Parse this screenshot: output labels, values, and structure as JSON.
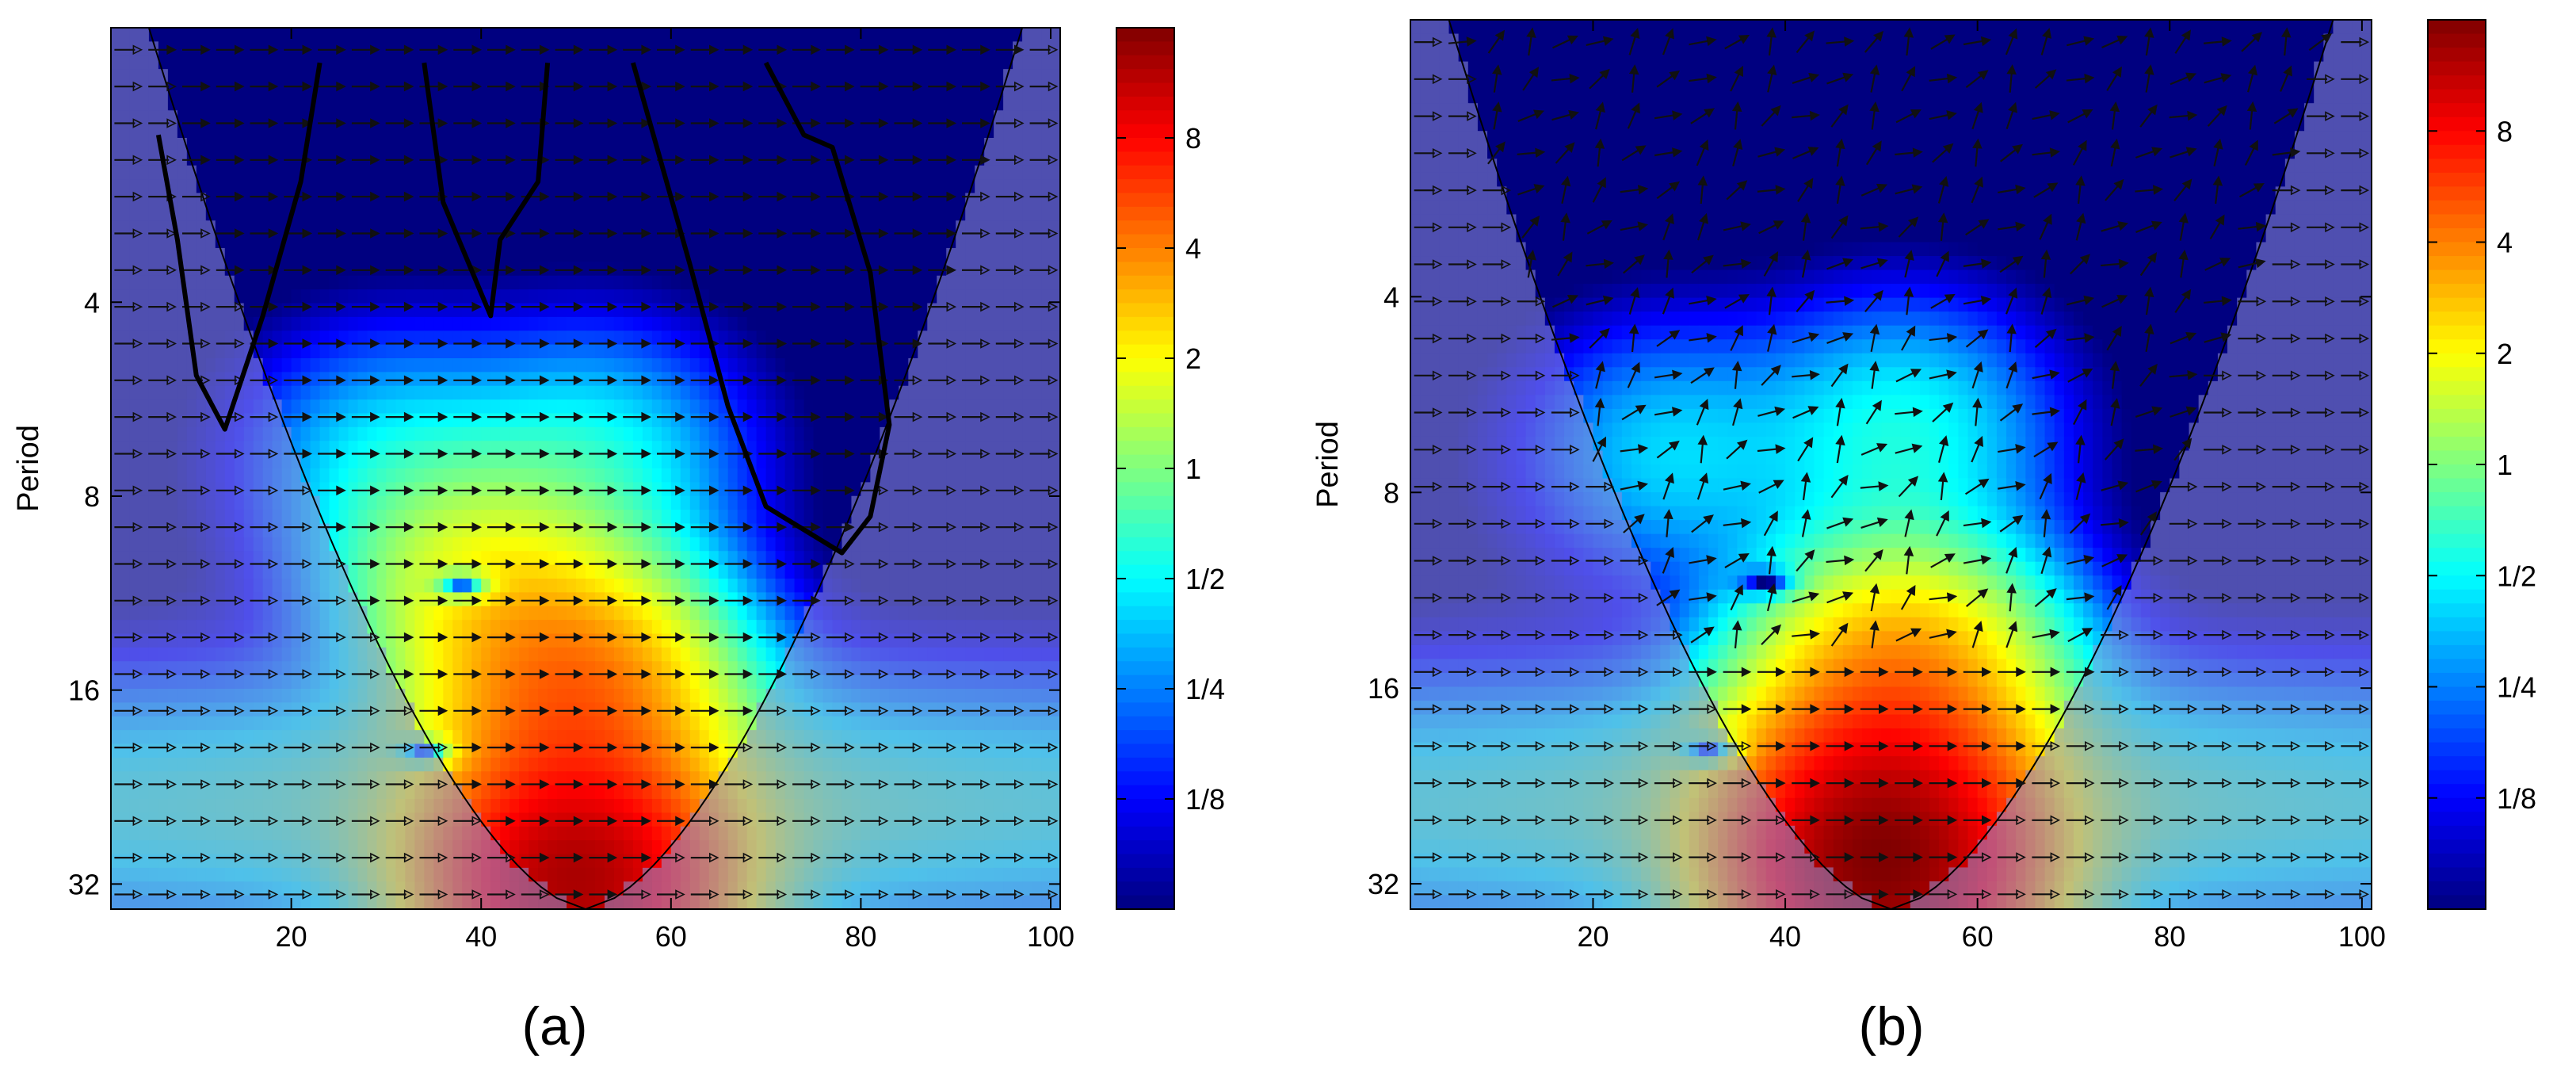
{
  "figure": {
    "panels": [
      {
        "id": "a",
        "label": "(a)"
      },
      {
        "id": "b",
        "label": "(b)"
      }
    ]
  },
  "chart_data": [
    {
      "type": "heatmap",
      "panel_label": "(a)",
      "title": "",
      "xlabel": "",
      "ylabel": "Period",
      "xlim": [
        1,
        101
      ],
      "ylim_period": [
        1.5,
        35
      ],
      "y_scale": "log2",
      "y_reversed": true,
      "x_ticks": [
        20,
        40,
        60,
        80,
        100
      ],
      "y_ticks": [
        4,
        8,
        16,
        32
      ],
      "colorbar": {
        "scale": "log2",
        "range": [
          0.0625,
          16
        ],
        "ticks": [
          {
            "value": 0.125,
            "label": "1/8"
          },
          {
            "value": 0.25,
            "label": "1/4"
          },
          {
            "value": 0.5,
            "label": "1/2"
          },
          {
            "value": 1,
            "label": "1"
          },
          {
            "value": 2,
            "label": "2"
          },
          {
            "value": 4,
            "label": "4"
          },
          {
            "value": 8,
            "label": "8"
          }
        ],
        "colormap": "jet"
      },
      "cone_of_influence": {
        "center_x": 51,
        "apex_period": 35,
        "top_half_width": 46,
        "shading": "#8f8fd8"
      },
      "hotspots": [
        {
          "x": 30,
          "period": 7,
          "power": 0.35
        },
        {
          "x": 52,
          "period": 7,
          "power": 0.45
        },
        {
          "x": 50,
          "period": 16,
          "power": 4
        },
        {
          "x": 50,
          "period": 32,
          "power": 12
        },
        {
          "x": 40,
          "period": 11,
          "power": 1.5
        }
      ],
      "low_spots": [
        {
          "x": 38,
          "period": 11
        },
        {
          "x": 34,
          "period": 20
        }
      ],
      "arrow_field": "horizontal",
      "significance_contours": [
        {
          "points": [
            [
              6,
              2.2
            ],
            [
              8,
              3.2
            ],
            [
              10,
              5.2
            ],
            [
              13,
              6.3
            ],
            [
              17,
              4.2
            ],
            [
              21,
              2.6
            ],
            [
              23,
              1.7
            ]
          ]
        },
        {
          "points": [
            [
              34,
              1.7
            ],
            [
              36,
              2.8
            ],
            [
              41,
              4.2
            ],
            [
              42,
              3.2
            ],
            [
              46,
              2.6
            ],
            [
              47,
              1.7
            ]
          ]
        },
        {
          "points": [
            [
              56,
              1.7
            ],
            [
              62,
              3.5
            ],
            [
              66,
              5.8
            ],
            [
              70,
              8.3
            ],
            [
              78,
              9.8
            ],
            [
              81,
              8.6
            ],
            [
              83,
              6.2
            ],
            [
              81,
              3.6
            ],
            [
              77,
              2.3
            ],
            [
              74,
              2.2
            ],
            [
              70,
              1.7
            ]
          ]
        }
      ]
    },
    {
      "type": "heatmap",
      "panel_label": "(b)",
      "title": "",
      "xlabel": "",
      "ylabel": "Period",
      "xlim": [
        1,
        101
      ],
      "ylim_period": [
        1.5,
        35
      ],
      "y_scale": "log2",
      "y_reversed": true,
      "x_ticks": [
        20,
        40,
        60,
        80,
        100
      ],
      "y_ticks": [
        4,
        8,
        16,
        32
      ],
      "colorbar": {
        "scale": "log2",
        "range": [
          0.0625,
          16
        ],
        "ticks": [
          {
            "value": 0.125,
            "label": "1/8"
          },
          {
            "value": 0.25,
            "label": "1/4"
          },
          {
            "value": 0.5,
            "label": "1/2"
          },
          {
            "value": 1,
            "label": "1"
          },
          {
            "value": 2,
            "label": "2"
          },
          {
            "value": 4,
            "label": "4"
          },
          {
            "value": 8,
            "label": "8"
          }
        ],
        "colormap": "jet"
      },
      "cone_of_influence": {
        "center_x": 51,
        "apex_period": 35,
        "top_half_width": 46,
        "shading": "#8f8fd8"
      },
      "hotspots": [
        {
          "x": 28,
          "period": 7,
          "power": 0.35
        },
        {
          "x": 52,
          "period": 6.5,
          "power": 0.5
        },
        {
          "x": 52,
          "period": 15,
          "power": 3
        },
        {
          "x": 50,
          "period": 24,
          "power": 5
        },
        {
          "x": 50,
          "period": 32,
          "power": 12
        }
      ],
      "low_spots": [
        {
          "x": 38,
          "period": 11
        },
        {
          "x": 32,
          "period": 20
        }
      ],
      "arrow_field": "mixed",
      "significance_contours": []
    }
  ]
}
